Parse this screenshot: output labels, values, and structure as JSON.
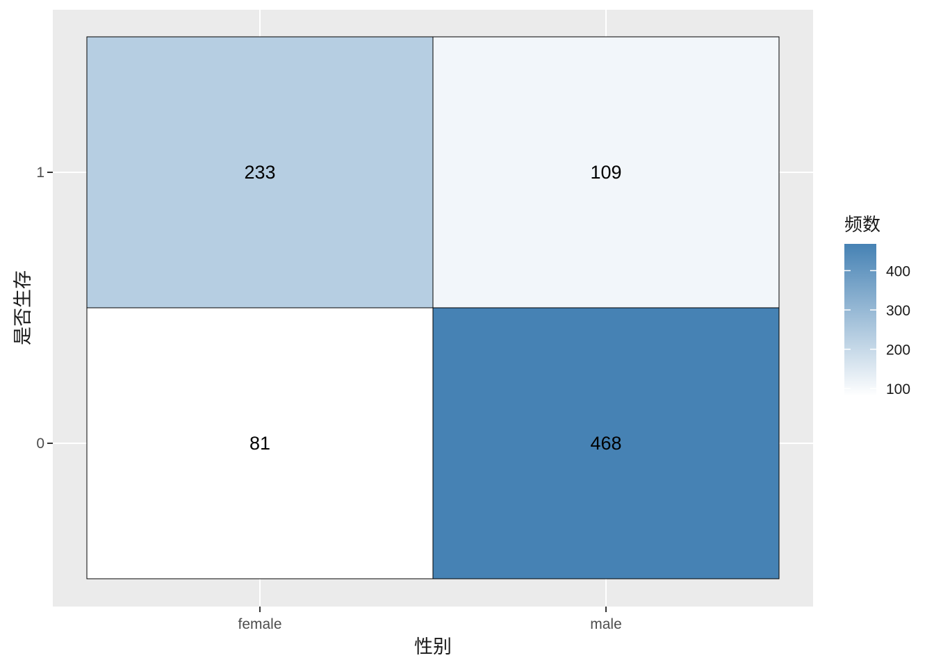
{
  "chart_data": {
    "type": "heatmap",
    "x_categories": [
      "female",
      "male"
    ],
    "y_categories": [
      "0",
      "1"
    ],
    "cells": [
      {
        "x": "female",
        "y": "1",
        "value": 233
      },
      {
        "x": "male",
        "y": "1",
        "value": 109
      },
      {
        "x": "female",
        "y": "0",
        "value": 81
      },
      {
        "x": "male",
        "y": "0",
        "value": 468
      }
    ],
    "xlabel": "性别",
    "ylabel": "是否生存",
    "legend": {
      "title": "频数",
      "ticks": [
        100,
        200,
        300,
        400
      ],
      "range": [
        81,
        468
      ],
      "low_color": "#ffffff",
      "high_color": "#4682b4",
      "position": "right"
    },
    "grid": true,
    "panel_background": "#ebebeb"
  }
}
